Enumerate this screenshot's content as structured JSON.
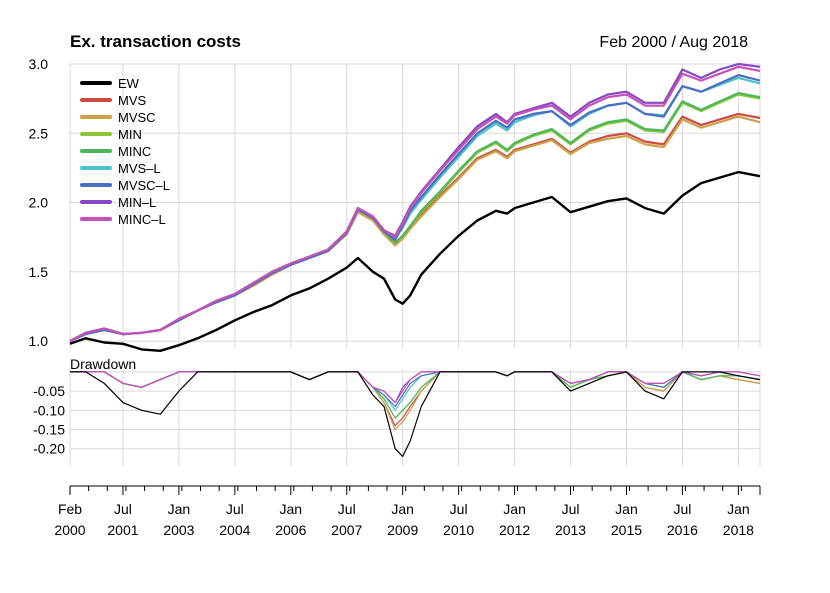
{
  "chart_data": {
    "type": "line",
    "title": "Ex. transaction costs",
    "date_range": "Feb 2000 / Aug 2018",
    "x_range": [
      2000.08,
      2018.58
    ],
    "top_panel": {
      "ylim": [
        0.95,
        3.0
      ],
      "yticks": [
        "1.0",
        "1.5",
        "2.0",
        "2.5",
        "3.0"
      ],
      "ytick_values": [
        1.0,
        1.5,
        2.0,
        2.5,
        3.0
      ]
    },
    "drawdown_panel": {
      "label": "Drawdown",
      "ylim": [
        -0.245,
        0.005
      ],
      "yticks": [
        "-0.05",
        "-0.10",
        "-0.15",
        "-0.20"
      ],
      "ytick_values": [
        -0.05,
        -0.1,
        -0.15,
        -0.2
      ]
    },
    "x_tick_labels": [
      {
        "year": 2000.08,
        "l1": "Feb",
        "l2": "2000"
      },
      {
        "year": 2001.5,
        "l1": "Jul",
        "l2": "2001"
      },
      {
        "year": 2003.0,
        "l1": "Jan",
        "l2": "2003"
      },
      {
        "year": 2004.5,
        "l1": "Jul",
        "l2": "2004"
      },
      {
        "year": 2006.0,
        "l1": "Jan",
        "l2": "2006"
      },
      {
        "year": 2007.5,
        "l1": "Jul",
        "l2": "2007"
      },
      {
        "year": 2009.0,
        "l1": "Jan",
        "l2": "2009"
      },
      {
        "year": 2010.5,
        "l1": "Jul",
        "l2": "2010"
      },
      {
        "year": 2012.0,
        "l1": "Jan",
        "l2": "2012"
      },
      {
        "year": 2013.5,
        "l1": "Jul",
        "l2": "2013"
      },
      {
        "year": 2015.0,
        "l1": "Jan",
        "l2": "2015"
      },
      {
        "year": 2016.5,
        "l1": "Jul",
        "l2": "2016"
      },
      {
        "year": 2018.0,
        "l1": "Jan",
        "l2": "2018"
      }
    ],
    "series_x": [
      2000.08,
      2000.5,
      2001.0,
      2001.5,
      2002.0,
      2002.5,
      2003.0,
      2003.5,
      2004.0,
      2004.5,
      2005.0,
      2005.5,
      2006.0,
      2006.5,
      2007.0,
      2007.5,
      2007.8,
      2008.2,
      2008.5,
      2008.8,
      2009.0,
      2009.2,
      2009.5,
      2010.0,
      2010.5,
      2011.0,
      2011.5,
      2011.8,
      2012.0,
      2012.5,
      2013.0,
      2013.5,
      2014.0,
      2014.5,
      2015.0,
      2015.5,
      2016.0,
      2016.5,
      2017.0,
      2017.5,
      2018.0,
      2018.58
    ],
    "series": [
      {
        "name": "EW",
        "color": "#000000",
        "width": 2.4,
        "values": [
          0.98,
          1.02,
          0.99,
          0.98,
          0.94,
          0.93,
          0.97,
          1.02,
          1.08,
          1.15,
          1.21,
          1.26,
          1.33,
          1.38,
          1.45,
          1.53,
          1.6,
          1.5,
          1.45,
          1.3,
          1.27,
          1.33,
          1.48,
          1.63,
          1.76,
          1.87,
          1.94,
          1.92,
          1.96,
          2.0,
          2.04,
          1.93,
          1.97,
          2.01,
          2.03,
          1.96,
          1.92,
          2.05,
          2.14,
          2.18,
          2.22,
          2.19
        ],
        "dd": [
          0.0,
          0.0,
          -0.03,
          -0.08,
          -0.1,
          -0.11,
          -0.05,
          0.0,
          0.0,
          0.0,
          0.0,
          0.0,
          0.0,
          -0.02,
          0.0,
          0.0,
          0.0,
          -0.06,
          -0.09,
          -0.2,
          -0.22,
          -0.18,
          -0.09,
          0.0,
          0.0,
          0.0,
          0.0,
          -0.01,
          0.0,
          0.0,
          0.0,
          -0.05,
          -0.03,
          -0.01,
          0.0,
          -0.05,
          -0.07,
          0.0,
          0.0,
          0.0,
          -0.01,
          -0.02
        ]
      },
      {
        "name": "MVS",
        "color": "#cd4b43",
        "width": 2.2,
        "values": [
          1.0,
          1.06,
          1.09,
          1.05,
          1.06,
          1.08,
          1.15,
          1.22,
          1.28,
          1.33,
          1.41,
          1.49,
          1.55,
          1.6,
          1.65,
          1.78,
          1.94,
          1.88,
          1.78,
          1.7,
          1.75,
          1.82,
          1.92,
          2.05,
          2.18,
          2.32,
          2.38,
          2.33,
          2.38,
          2.42,
          2.46,
          2.36,
          2.44,
          2.48,
          2.5,
          2.44,
          2.42,
          2.62,
          2.56,
          2.6,
          2.64,
          2.61
        ],
        "dd": [
          0.0,
          0.0,
          0.0,
          -0.03,
          -0.04,
          -0.02,
          0.0,
          0.0,
          0.0,
          0.0,
          0.0,
          0.0,
          0.0,
          -0.02,
          0.0,
          0.0,
          0.0,
          -0.04,
          -0.08,
          -0.14,
          -0.12,
          -0.09,
          -0.05,
          0.0,
          0.0,
          0.0,
          0.0,
          -0.01,
          0.0,
          0.0,
          0.0,
          -0.04,
          -0.02,
          -0.01,
          0.0,
          -0.04,
          -0.05,
          0.0,
          -0.02,
          -0.01,
          -0.02,
          -0.03
        ]
      },
      {
        "name": "MVSC",
        "color": "#cba14a",
        "width": 2.2,
        "values": [
          1.0,
          1.05,
          1.08,
          1.05,
          1.06,
          1.08,
          1.15,
          1.22,
          1.28,
          1.33,
          1.4,
          1.48,
          1.55,
          1.6,
          1.65,
          1.77,
          1.93,
          1.87,
          1.77,
          1.69,
          1.74,
          1.81,
          1.9,
          2.04,
          2.17,
          2.31,
          2.37,
          2.32,
          2.37,
          2.41,
          2.45,
          2.35,
          2.43,
          2.46,
          2.48,
          2.42,
          2.4,
          2.6,
          2.54,
          2.58,
          2.62,
          2.58
        ],
        "dd": [
          0.0,
          0.0,
          0.0,
          -0.03,
          -0.04,
          -0.02,
          0.0,
          0.0,
          0.0,
          0.0,
          0.0,
          0.0,
          0.0,
          -0.02,
          0.0,
          0.0,
          0.0,
          -0.04,
          -0.08,
          -0.15,
          -0.13,
          -0.1,
          -0.05,
          0.0,
          0.0,
          0.0,
          0.0,
          -0.01,
          0.0,
          0.0,
          0.0,
          -0.04,
          -0.02,
          -0.01,
          0.0,
          -0.04,
          -0.05,
          0.0,
          -0.02,
          -0.01,
          -0.02,
          -0.03
        ]
      },
      {
        "name": "MIN",
        "color": "#8cc63e",
        "width": 2.2,
        "values": [
          1.0,
          1.06,
          1.09,
          1.05,
          1.06,
          1.08,
          1.16,
          1.22,
          1.29,
          1.34,
          1.42,
          1.5,
          1.56,
          1.61,
          1.66,
          1.79,
          1.95,
          1.89,
          1.79,
          1.71,
          1.76,
          1.83,
          1.93,
          2.07,
          2.22,
          2.36,
          2.43,
          2.37,
          2.42,
          2.48,
          2.52,
          2.42,
          2.52,
          2.57,
          2.59,
          2.52,
          2.51,
          2.72,
          2.66,
          2.72,
          2.78,
          2.75
        ],
        "dd": [
          0.0,
          0.0,
          0.0,
          -0.03,
          -0.04,
          -0.02,
          0.0,
          0.0,
          0.0,
          0.0,
          0.0,
          0.0,
          0.0,
          -0.02,
          0.0,
          0.0,
          0.0,
          -0.04,
          -0.07,
          -0.12,
          -0.1,
          -0.08,
          -0.04,
          0.0,
          0.0,
          0.0,
          0.0,
          -0.01,
          0.0,
          0.0,
          0.0,
          -0.04,
          -0.02,
          -0.01,
          0.0,
          -0.03,
          -0.04,
          0.0,
          -0.02,
          -0.01,
          -0.01,
          -0.02
        ]
      },
      {
        "name": "MINC",
        "color": "#4db85a",
        "width": 2.2,
        "values": [
          1.0,
          1.06,
          1.09,
          1.05,
          1.06,
          1.08,
          1.16,
          1.22,
          1.29,
          1.34,
          1.42,
          1.5,
          1.56,
          1.61,
          1.66,
          1.79,
          1.95,
          1.89,
          1.79,
          1.71,
          1.76,
          1.83,
          1.94,
          2.08,
          2.23,
          2.37,
          2.44,
          2.38,
          2.43,
          2.49,
          2.53,
          2.43,
          2.53,
          2.58,
          2.6,
          2.53,
          2.52,
          2.73,
          2.67,
          2.73,
          2.79,
          2.76
        ],
        "dd": [
          0.0,
          0.0,
          0.0,
          -0.03,
          -0.04,
          -0.02,
          0.0,
          0.0,
          0.0,
          0.0,
          0.0,
          0.0,
          0.0,
          -0.02,
          0.0,
          0.0,
          0.0,
          -0.04,
          -0.07,
          -0.12,
          -0.1,
          -0.08,
          -0.04,
          0.0,
          0.0,
          0.0,
          0.0,
          -0.01,
          0.0,
          0.0,
          0.0,
          -0.04,
          -0.02,
          -0.01,
          0.0,
          -0.03,
          -0.04,
          0.0,
          -0.02,
          -0.01,
          -0.01,
          -0.02
        ]
      },
      {
        "name": "MVS–L",
        "color": "#4cc3c6",
        "width": 2.2,
        "values": [
          1.0,
          1.06,
          1.09,
          1.05,
          1.06,
          1.08,
          1.16,
          1.22,
          1.29,
          1.34,
          1.42,
          1.5,
          1.56,
          1.61,
          1.66,
          1.79,
          1.96,
          1.9,
          1.8,
          1.74,
          1.82,
          1.92,
          2.02,
          2.18,
          2.33,
          2.48,
          2.57,
          2.52,
          2.58,
          2.63,
          2.66,
          2.55,
          2.64,
          2.7,
          2.72,
          2.64,
          2.63,
          2.84,
          2.8,
          2.85,
          2.9,
          2.86
        ],
        "dd": [
          0.0,
          0.0,
          0.0,
          -0.03,
          -0.04,
          -0.02,
          0.0,
          0.0,
          0.0,
          0.0,
          0.0,
          0.0,
          0.0,
          -0.02,
          0.0,
          0.0,
          0.0,
          -0.04,
          -0.06,
          -0.1,
          -0.07,
          -0.04,
          -0.01,
          0.0,
          0.0,
          0.0,
          0.0,
          -0.01,
          0.0,
          0.0,
          0.0,
          -0.03,
          -0.02,
          0.0,
          0.0,
          -0.03,
          -0.04,
          0.0,
          -0.01,
          0.0,
          -0.01,
          -0.02
        ]
      },
      {
        "name": "MVSC–L",
        "color": "#4a6fc2",
        "width": 2.2,
        "values": [
          1.0,
          1.05,
          1.08,
          1.05,
          1.06,
          1.08,
          1.15,
          1.22,
          1.28,
          1.33,
          1.41,
          1.49,
          1.55,
          1.6,
          1.65,
          1.78,
          1.95,
          1.89,
          1.79,
          1.73,
          1.83,
          1.94,
          2.04,
          2.2,
          2.35,
          2.5,
          2.59,
          2.54,
          2.6,
          2.64,
          2.66,
          2.56,
          2.65,
          2.7,
          2.72,
          2.64,
          2.62,
          2.84,
          2.8,
          2.86,
          2.92,
          2.88
        ],
        "dd": [
          0.0,
          0.0,
          0.0,
          -0.03,
          -0.04,
          -0.02,
          0.0,
          0.0,
          0.0,
          0.0,
          0.0,
          0.0,
          0.0,
          -0.02,
          0.0,
          0.0,
          0.0,
          -0.04,
          -0.06,
          -0.09,
          -0.06,
          -0.03,
          -0.01,
          0.0,
          0.0,
          0.0,
          0.0,
          -0.01,
          0.0,
          0.0,
          0.0,
          -0.03,
          -0.02,
          0.0,
          0.0,
          -0.03,
          -0.04,
          0.0,
          -0.01,
          0.0,
          -0.01,
          -0.02
        ]
      },
      {
        "name": "MIN–L",
        "color": "#8a47c2",
        "width": 2.2,
        "values": [
          1.0,
          1.06,
          1.09,
          1.05,
          1.06,
          1.08,
          1.16,
          1.22,
          1.29,
          1.34,
          1.42,
          1.5,
          1.56,
          1.61,
          1.66,
          1.79,
          1.96,
          1.9,
          1.8,
          1.76,
          1.86,
          1.97,
          2.08,
          2.24,
          2.4,
          2.55,
          2.64,
          2.58,
          2.64,
          2.68,
          2.72,
          2.62,
          2.72,
          2.78,
          2.8,
          2.72,
          2.72,
          2.96,
          2.9,
          2.96,
          3.0,
          2.98
        ],
        "dd": [
          0.0,
          0.0,
          0.0,
          -0.03,
          -0.04,
          -0.02,
          0.0,
          0.0,
          0.0,
          0.0,
          0.0,
          0.0,
          0.0,
          -0.02,
          0.0,
          0.0,
          0.0,
          -0.04,
          -0.05,
          -0.08,
          -0.04,
          -0.02,
          0.0,
          0.0,
          0.0,
          0.0,
          0.0,
          -0.01,
          0.0,
          0.0,
          0.0,
          -0.03,
          -0.02,
          0.0,
          0.0,
          -0.03,
          -0.03,
          0.0,
          -0.01,
          0.0,
          0.0,
          -0.01
        ]
      },
      {
        "name": "MINC–L",
        "color": "#c552b8",
        "width": 2.2,
        "values": [
          1.0,
          1.06,
          1.09,
          1.05,
          1.06,
          1.08,
          1.16,
          1.22,
          1.29,
          1.34,
          1.42,
          1.5,
          1.56,
          1.61,
          1.66,
          1.79,
          1.96,
          1.9,
          1.8,
          1.75,
          1.85,
          1.96,
          2.07,
          2.23,
          2.38,
          2.53,
          2.62,
          2.57,
          2.63,
          2.67,
          2.7,
          2.6,
          2.7,
          2.76,
          2.78,
          2.7,
          2.7,
          2.93,
          2.88,
          2.93,
          2.98,
          2.95
        ],
        "dd": [
          0.0,
          0.0,
          0.0,
          -0.03,
          -0.04,
          -0.02,
          0.0,
          0.0,
          0.0,
          0.0,
          0.0,
          0.0,
          0.0,
          -0.02,
          0.0,
          0.0,
          0.0,
          -0.04,
          -0.05,
          -0.08,
          -0.05,
          -0.02,
          0.0,
          0.0,
          0.0,
          0.0,
          0.0,
          -0.01,
          0.0,
          0.0,
          0.0,
          -0.03,
          -0.02,
          0.0,
          0.0,
          -0.03,
          -0.03,
          0.0,
          -0.01,
          0.0,
          0.0,
          -0.01
        ]
      }
    ]
  }
}
